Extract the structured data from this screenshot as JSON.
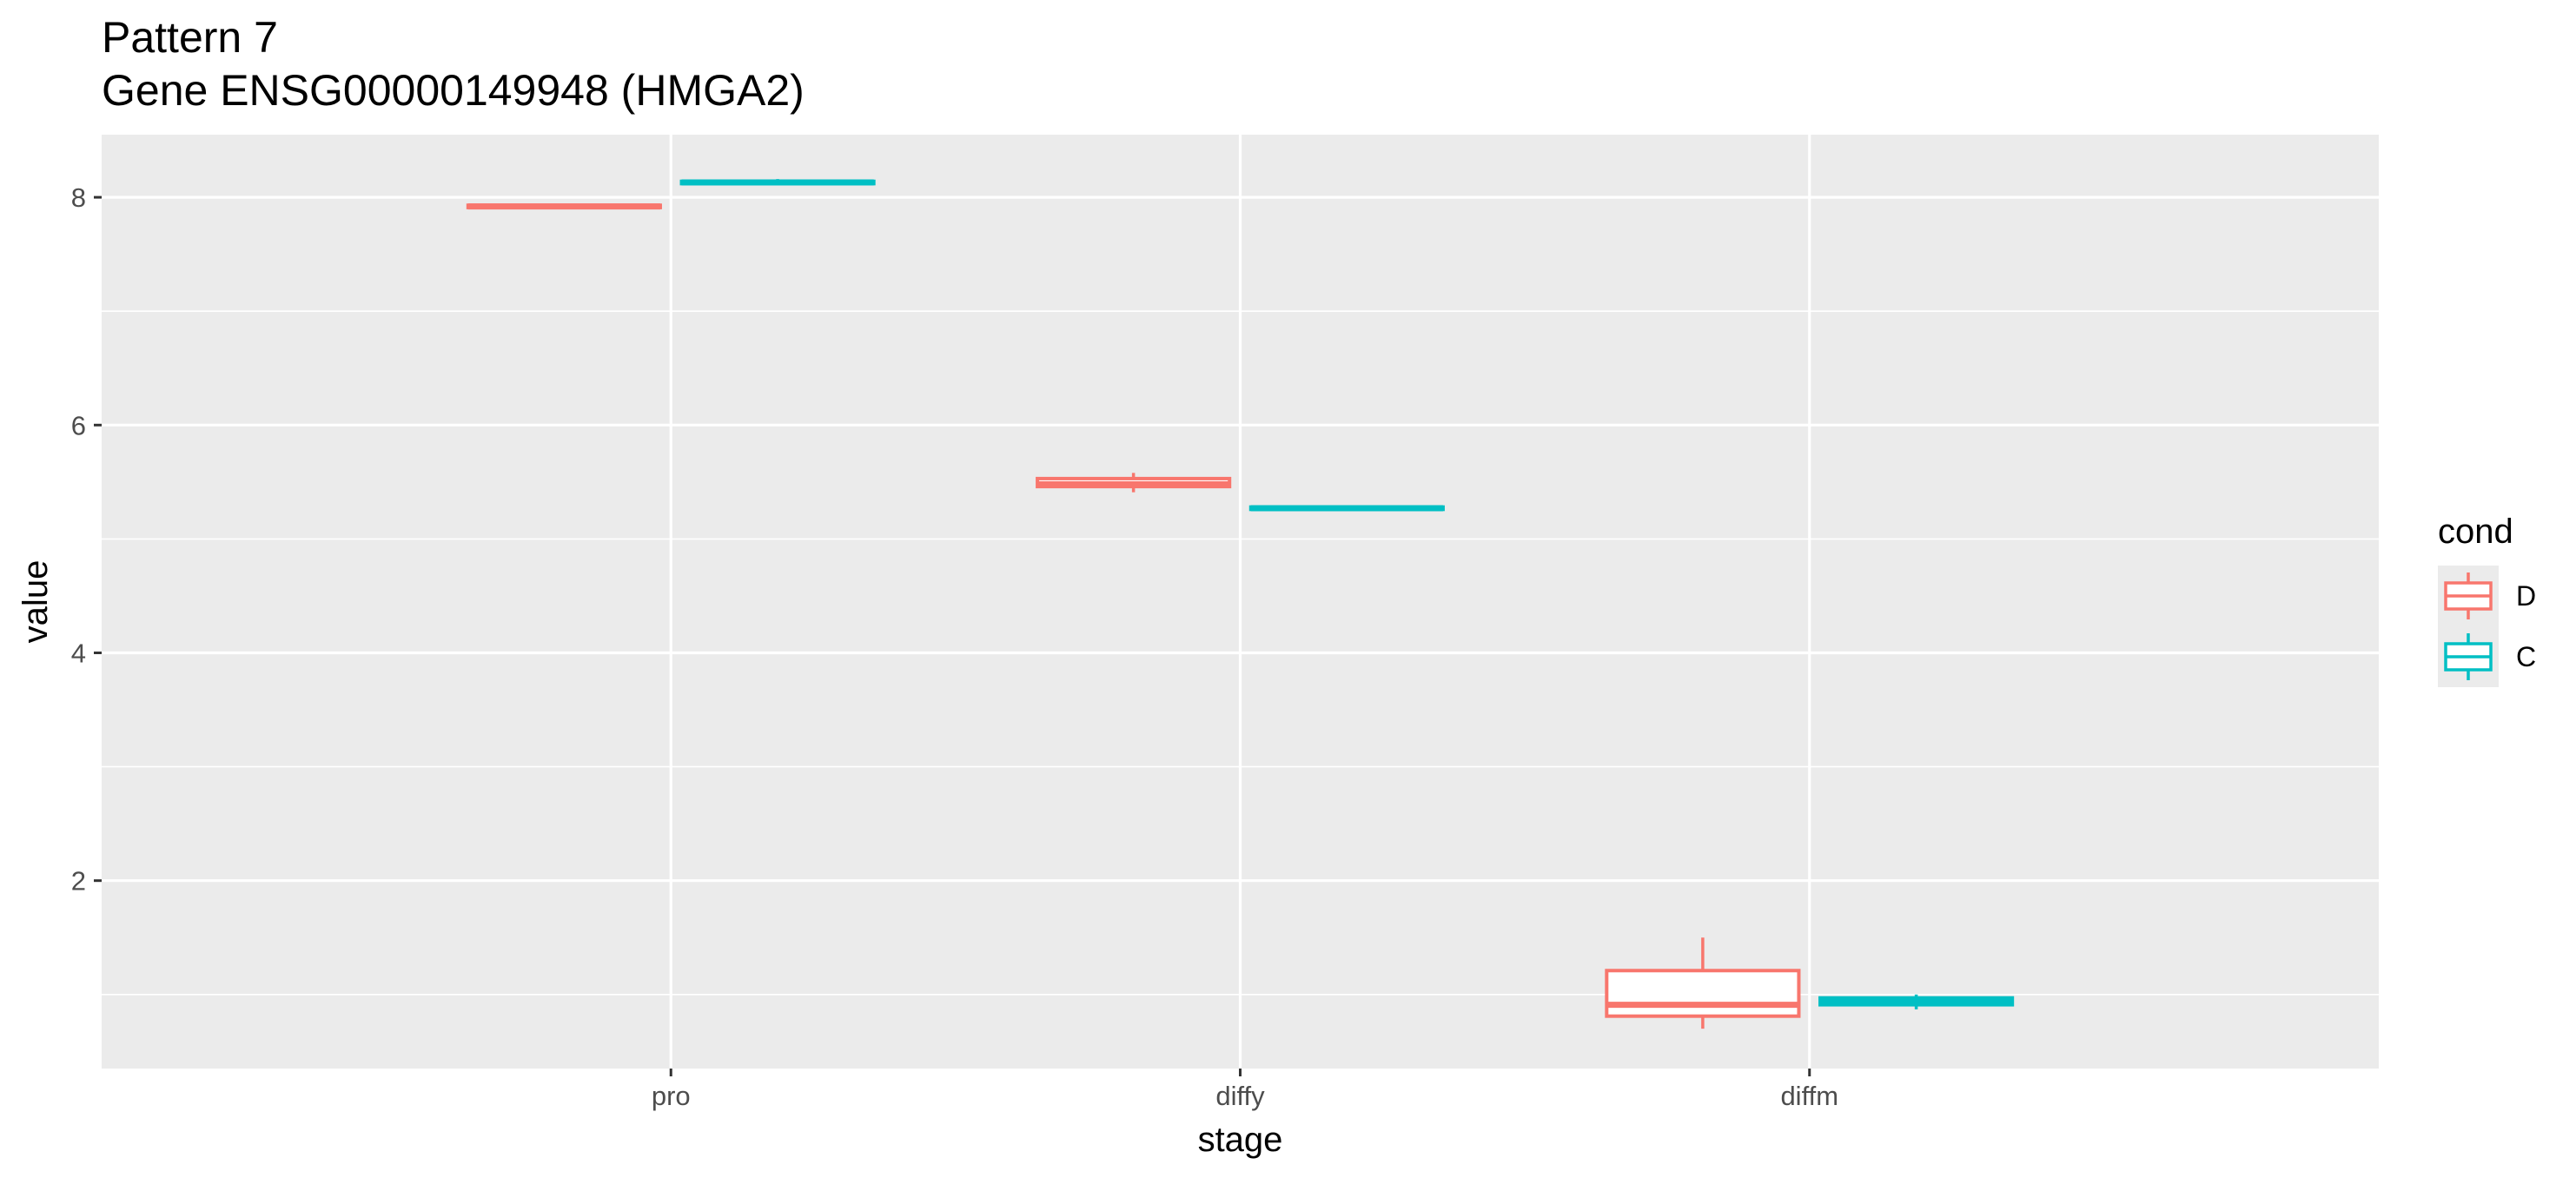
{
  "chart_data": {
    "type": "boxplot",
    "title": "Pattern 7",
    "subtitle": "Gene ENSG00000149948 (HMGA2)",
    "xlabel": "stage",
    "ylabel": "value",
    "categories": [
      "pro",
      "diffy",
      "diffm"
    ],
    "ylim": [
      0.35,
      8.55
    ],
    "y_ticks": [
      2,
      4,
      6,
      8
    ],
    "y_tick_labels": [
      "2",
      "4",
      "6",
      "8"
    ],
    "grid": true,
    "background": "#ebebeb",
    "legend": {
      "title": "cond",
      "position": "right"
    },
    "series": [
      {
        "name": "D",
        "color": "#f8766d",
        "boxes": [
          {
            "min": 7.91,
            "q1": 7.91,
            "median": 7.92,
            "q3": 7.93,
            "max": 7.94
          },
          {
            "min": 5.41,
            "q1": 5.46,
            "median": 5.48,
            "q3": 5.53,
            "max": 5.58
          },
          {
            "min": 0.7,
            "q1": 0.81,
            "median": 0.91,
            "q3": 1.21,
            "max": 1.5
          }
        ]
      },
      {
        "name": "C",
        "color": "#00bfc4",
        "boxes": [
          {
            "min": 8.11,
            "q1": 8.12,
            "median": 8.13,
            "q3": 8.14,
            "max": 8.16
          },
          {
            "min": 5.26,
            "q1": 5.26,
            "median": 5.27,
            "q3": 5.28,
            "max": 5.28
          },
          {
            "min": 0.87,
            "q1": 0.91,
            "median": 0.94,
            "q3": 0.97,
            "max": 1.0
          }
        ]
      }
    ]
  }
}
